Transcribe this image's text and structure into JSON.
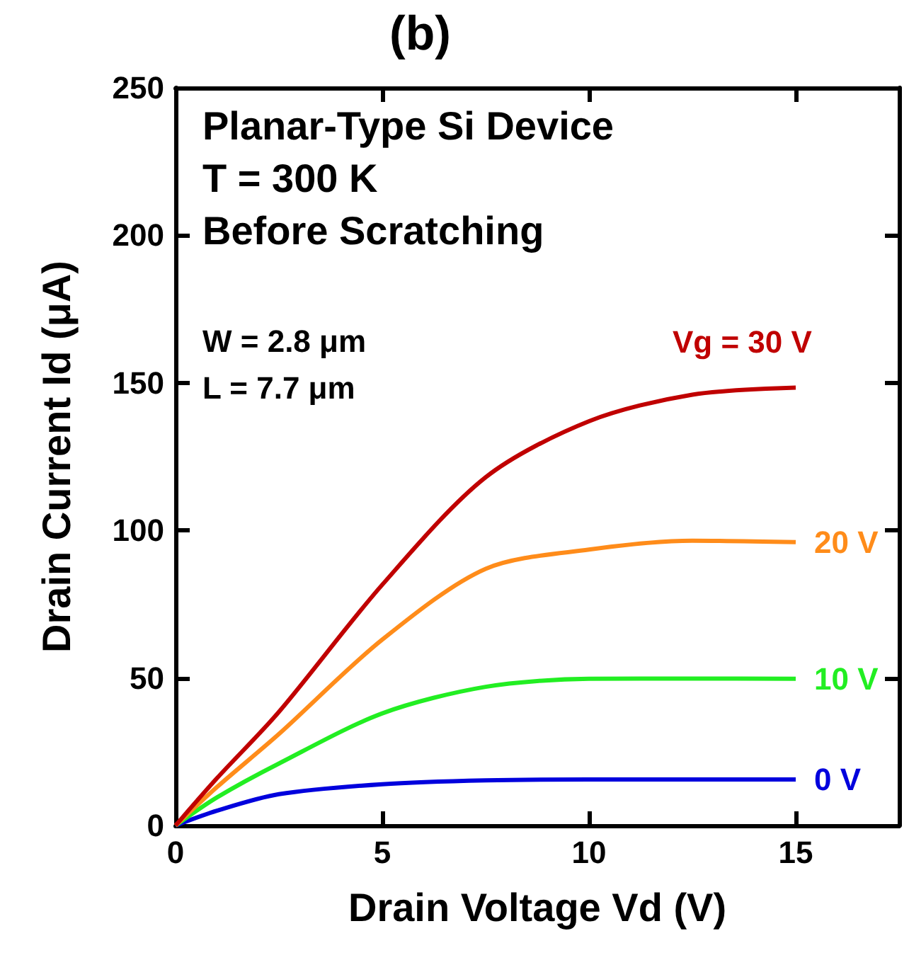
{
  "chart_data": {
    "type": "line",
    "title": "(b)",
    "xlabel": "Drain Voltage Vd (V)",
    "ylabel": "Drain Current Id (μA)",
    "annotations": [
      "Planar-Type Si Device",
      "T = 300 K",
      "Before Scratching",
      "W = 2.8 μm",
      "L = 7.7 μm"
    ],
    "x": [
      0,
      1,
      2.5,
      5,
      7.5,
      10,
      12.5,
      15
    ],
    "series": [
      {
        "name": "Vg = 30 V",
        "color": "#c00000",
        "values": [
          0,
          16,
          38.5,
          81.6,
          118,
          137,
          146,
          148.4
        ]
      },
      {
        "name": "20 V",
        "color": "#ff8c1a",
        "values": [
          0,
          13,
          31,
          63,
          87,
          93.5,
          96.5,
          96
        ]
      },
      {
        "name": "10 V",
        "color": "#22ee22",
        "values": [
          0,
          9.5,
          21,
          38,
          47,
          49.7,
          49.8,
          49.7
        ]
      },
      {
        "name": "0 V",
        "color": "#0000dd",
        "values": [
          0,
          5,
          10.6,
          14,
          15.3,
          15.6,
          15.6,
          15.6
        ]
      }
    ],
    "xlim": [
      0,
      17.5
    ],
    "xticks": [
      0,
      5,
      10,
      15
    ],
    "ylim": [
      0,
      250
    ],
    "yticks": [
      0,
      50,
      100,
      150,
      200,
      250
    ],
    "grid": false,
    "legend": false,
    "marker": "none",
    "line_style": "solid"
  }
}
